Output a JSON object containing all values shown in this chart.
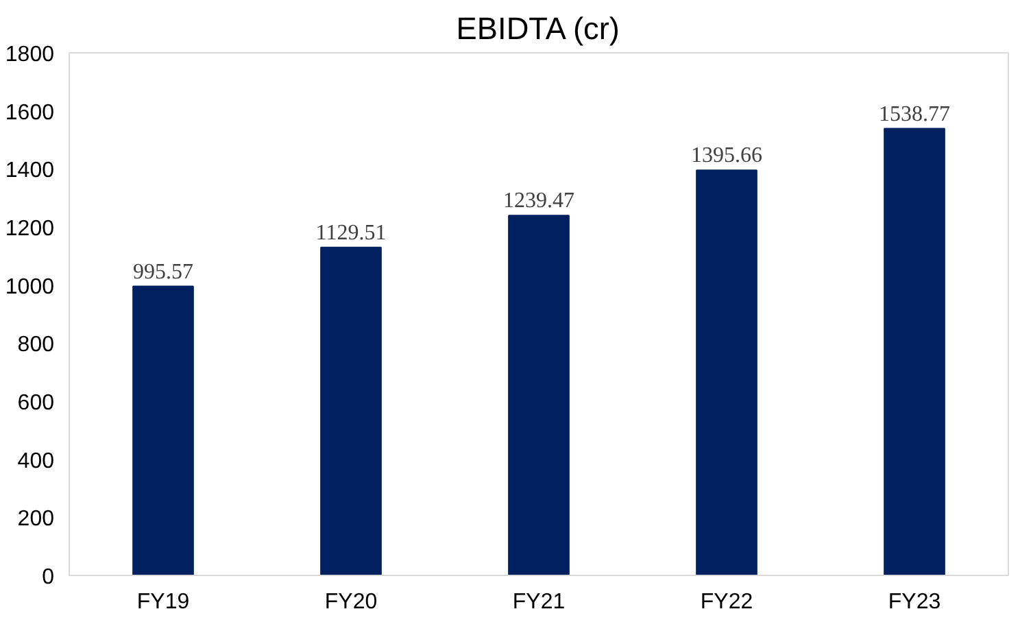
{
  "chart_data": {
    "type": "bar",
    "title": "EBIDTA (cr)",
    "categories": [
      "FY19",
      "FY20",
      "FY21",
      "FY22",
      "FY23"
    ],
    "values": [
      995.57,
      1129.51,
      1239.47,
      1395.66,
      1538.77
    ],
    "color": "#002060",
    "ylim": [
      0,
      1800
    ],
    "yticks": [
      0,
      200,
      400,
      600,
      800,
      1000,
      1200,
      1400,
      1600,
      1800
    ],
    "grid": false,
    "data_labels": true
  }
}
